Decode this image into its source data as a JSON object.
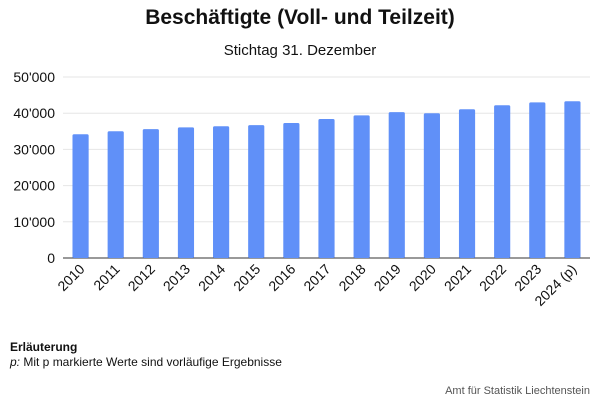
{
  "chart_data": {
    "type": "bar",
    "title": "Beschäftigte (Voll- und Teilzeit)",
    "subtitle": "Stichtag 31. Dezember",
    "xlabel": "",
    "ylabel": "",
    "categories": [
      "2010",
      "2011",
      "2012",
      "2013",
      "2014",
      "2015",
      "2016",
      "2017",
      "2018",
      "2019",
      "2020",
      "2021",
      "2022",
      "2023",
      "2024 (p)"
    ],
    "values": [
      34200,
      35000,
      35600,
      36100,
      36400,
      36700,
      37300,
      38400,
      39400,
      40300,
      40000,
      41100,
      42200,
      43000,
      43300
    ],
    "yticks": [
      "0",
      "10'000",
      "20'000",
      "30'000",
      "40'000",
      "50'000"
    ],
    "ylim": [
      0,
      50000
    ],
    "grid": true,
    "bar_color": "#6090f8"
  },
  "notes": {
    "heading": "Erläuterung",
    "prefix": "p:",
    "text": " Mit p markierte Werte sind vorläufige Ergebnisse"
  },
  "source": "Amt für Statistik Liechtenstein"
}
